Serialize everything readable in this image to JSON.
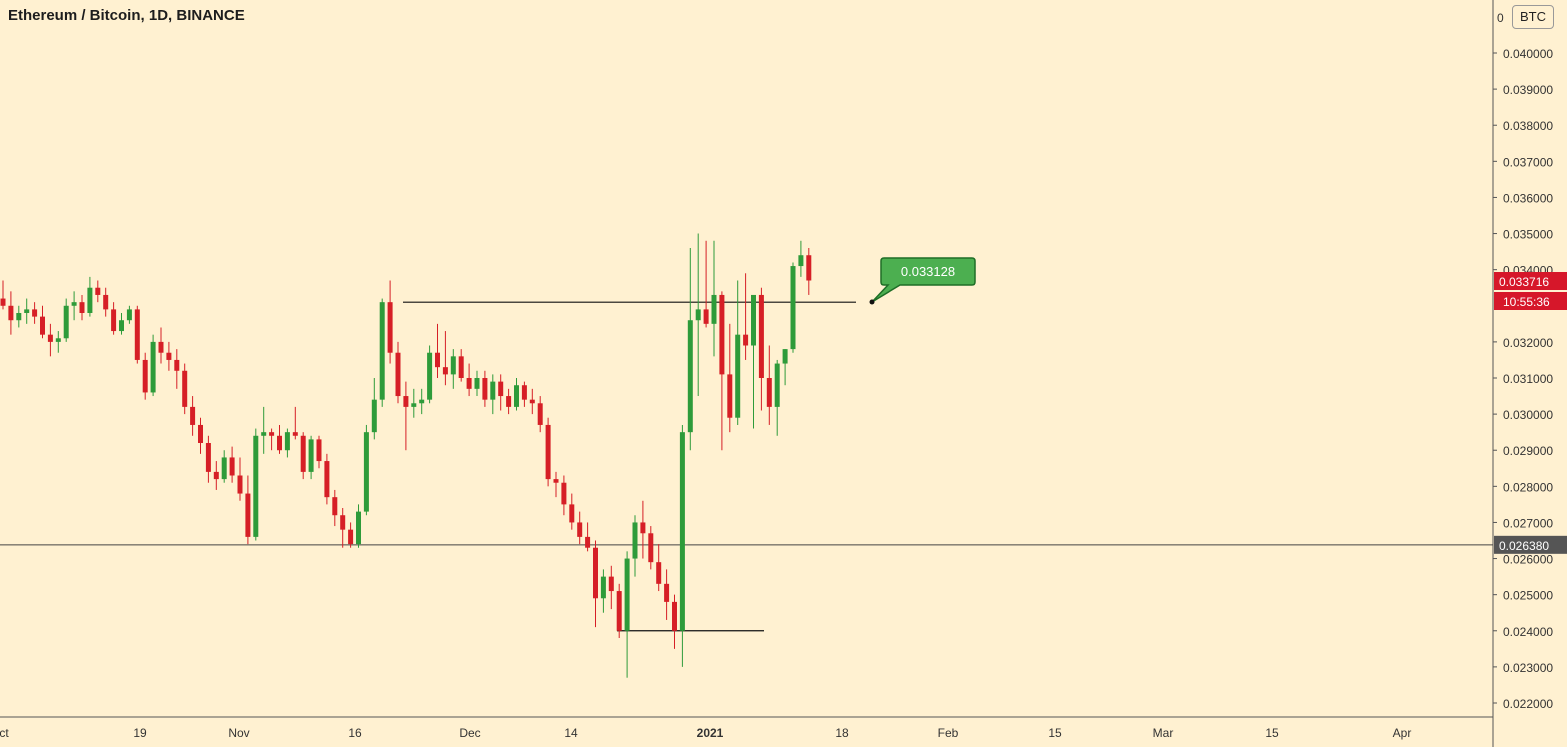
{
  "header": {
    "title": "Ethereum / Bitcoin, 1D, BINANCE",
    "currency_badge": "BTC"
  },
  "colors": {
    "background": "#fff1d1",
    "up": "#2e9b3a",
    "down": "#d61f26",
    "axis_text": "#333333",
    "price_tag": "#d6172a",
    "level_tag": "#555555",
    "callout": "#4caf50"
  },
  "chart_data": {
    "type": "candlestick",
    "y_axis_labels": [
      "0.040000",
      "0.039000",
      "0.038000",
      "0.037000",
      "0.036000",
      "0.035000",
      "0.034000",
      "0.032000",
      "0.031000",
      "0.030000",
      "0.029000",
      "0.028000",
      "0.027000",
      "0.026000",
      "0.025000",
      "0.024000",
      "0.023000",
      "0.022000"
    ],
    "ylim": [
      0.0215,
      0.0415
    ],
    "x_axis_labels": [
      "ct",
      "19",
      "Nov",
      "16",
      "Dec",
      "14",
      "2021",
      "18",
      "Feb",
      "15",
      "Mar",
      "15",
      "Apr"
    ],
    "current_price": "0.033716",
    "countdown": "10:55:36",
    "horizontal_level": "0.026380",
    "callout_value": "0.033128",
    "resistance_level": 0.0331,
    "support_level": 0.024,
    "candles": [
      [
        0.0332,
        0.0337,
        0.0329,
        0.033
      ],
      [
        0.033,
        0.0334,
        0.0322,
        0.0326
      ],
      [
        0.0326,
        0.033,
        0.0324,
        0.0328
      ],
      [
        0.0328,
        0.0332,
        0.0325,
        0.0329
      ],
      [
        0.0329,
        0.0331,
        0.0325,
        0.0327
      ],
      [
        0.0327,
        0.033,
        0.0321,
        0.0322
      ],
      [
        0.0322,
        0.0325,
        0.0316,
        0.032
      ],
      [
        0.032,
        0.0323,
        0.0317,
        0.0321
      ],
      [
        0.0321,
        0.0332,
        0.032,
        0.033
      ],
      [
        0.033,
        0.0334,
        0.0326,
        0.0331
      ],
      [
        0.0331,
        0.0333,
        0.0326,
        0.0328
      ],
      [
        0.0328,
        0.0338,
        0.0327,
        0.0335
      ],
      [
        0.0335,
        0.0337,
        0.0331,
        0.0333
      ],
      [
        0.0333,
        0.0335,
        0.0327,
        0.0329
      ],
      [
        0.0329,
        0.0331,
        0.0322,
        0.0323
      ],
      [
        0.0323,
        0.0328,
        0.0322,
        0.0326
      ],
      [
        0.0326,
        0.033,
        0.0325,
        0.0329
      ],
      [
        0.0329,
        0.033,
        0.0314,
        0.0315
      ],
      [
        0.0315,
        0.0317,
        0.0304,
        0.0306
      ],
      [
        0.0306,
        0.0322,
        0.0305,
        0.032
      ],
      [
        0.032,
        0.0324,
        0.0314,
        0.0317
      ],
      [
        0.0317,
        0.032,
        0.0312,
        0.0315
      ],
      [
        0.0315,
        0.0318,
        0.0307,
        0.0312
      ],
      [
        0.0312,
        0.0314,
        0.03,
        0.0302
      ],
      [
        0.0302,
        0.0305,
        0.0294,
        0.0297
      ],
      [
        0.0297,
        0.0299,
        0.0289,
        0.0292
      ],
      [
        0.0292,
        0.0294,
        0.0281,
        0.0284
      ],
      [
        0.0284,
        0.0287,
        0.0279,
        0.0282
      ],
      [
        0.0282,
        0.029,
        0.0281,
        0.0288
      ],
      [
        0.0288,
        0.0291,
        0.0281,
        0.0283
      ],
      [
        0.0283,
        0.0288,
        0.0276,
        0.0278
      ],
      [
        0.0278,
        0.0283,
        0.0264,
        0.0266
      ],
      [
        0.0266,
        0.0296,
        0.0265,
        0.0294
      ],
      [
        0.0294,
        0.0302,
        0.0289,
        0.0295
      ],
      [
        0.0295,
        0.0296,
        0.029,
        0.0294
      ],
      [
        0.0294,
        0.0297,
        0.0289,
        0.029
      ],
      [
        0.029,
        0.0296,
        0.0288,
        0.0295
      ],
      [
        0.0295,
        0.0302,
        0.0293,
        0.0294
      ],
      [
        0.0294,
        0.0295,
        0.0282,
        0.0284
      ],
      [
        0.0284,
        0.0294,
        0.0282,
        0.0293
      ],
      [
        0.0293,
        0.0294,
        0.0285,
        0.0287
      ],
      [
        0.0287,
        0.0289,
        0.0275,
        0.0277
      ],
      [
        0.0277,
        0.0279,
        0.0269,
        0.0272
      ],
      [
        0.0272,
        0.0274,
        0.0263,
        0.0268
      ],
      [
        0.0268,
        0.027,
        0.0263,
        0.0264
      ],
      [
        0.0264,
        0.0275,
        0.0263,
        0.0273
      ],
      [
        0.0273,
        0.0297,
        0.0272,
        0.0295
      ],
      [
        0.0295,
        0.031,
        0.0293,
        0.0304
      ],
      [
        0.0304,
        0.0332,
        0.0302,
        0.0331
      ],
      [
        0.0331,
        0.0337,
        0.0314,
        0.0317
      ],
      [
        0.0317,
        0.032,
        0.0303,
        0.0305
      ],
      [
        0.0305,
        0.0309,
        0.029,
        0.0302
      ],
      [
        0.0302,
        0.0307,
        0.0299,
        0.0303
      ],
      [
        0.0303,
        0.0307,
        0.03,
        0.0304
      ],
      [
        0.0304,
        0.0319,
        0.0303,
        0.0317
      ],
      [
        0.0317,
        0.0325,
        0.031,
        0.0313
      ],
      [
        0.0313,
        0.0323,
        0.0308,
        0.0311
      ],
      [
        0.0311,
        0.0318,
        0.0307,
        0.0316
      ],
      [
        0.0316,
        0.0318,
        0.0309,
        0.031
      ],
      [
        0.031,
        0.0314,
        0.0305,
        0.0307
      ],
      [
        0.0307,
        0.0312,
        0.0305,
        0.031
      ],
      [
        0.031,
        0.0312,
        0.0302,
        0.0304
      ],
      [
        0.0304,
        0.0311,
        0.03,
        0.0309
      ],
      [
        0.0309,
        0.0311,
        0.0301,
        0.0305
      ],
      [
        0.0305,
        0.0307,
        0.03,
        0.0302
      ],
      [
        0.0302,
        0.031,
        0.0301,
        0.0308
      ],
      [
        0.0308,
        0.0309,
        0.0302,
        0.0304
      ],
      [
        0.0304,
        0.0307,
        0.03,
        0.0303
      ],
      [
        0.0303,
        0.0305,
        0.0295,
        0.0297
      ],
      [
        0.0297,
        0.0299,
        0.028,
        0.0282
      ],
      [
        0.0282,
        0.0284,
        0.0277,
        0.0281
      ],
      [
        0.0281,
        0.0283,
        0.0272,
        0.0275
      ],
      [
        0.0275,
        0.0278,
        0.0268,
        0.027
      ],
      [
        0.027,
        0.0273,
        0.0264,
        0.0266
      ],
      [
        0.0266,
        0.027,
        0.0262,
        0.0263
      ],
      [
        0.0263,
        0.0265,
        0.0241,
        0.0249
      ],
      [
        0.0249,
        0.0257,
        0.0245,
        0.0255
      ],
      [
        0.0255,
        0.0258,
        0.0246,
        0.0251
      ],
      [
        0.0251,
        0.0253,
        0.0238,
        0.024
      ],
      [
        0.024,
        0.0262,
        0.0227,
        0.026
      ],
      [
        0.026,
        0.0272,
        0.0255,
        0.027
      ],
      [
        0.027,
        0.0276,
        0.026,
        0.0267
      ],
      [
        0.0267,
        0.0269,
        0.0257,
        0.0259
      ],
      [
        0.0259,
        0.0264,
        0.0251,
        0.0253
      ],
      [
        0.0253,
        0.0257,
        0.0243,
        0.0248
      ],
      [
        0.0248,
        0.025,
        0.0235,
        0.024
      ],
      [
        0.024,
        0.0297,
        0.023,
        0.0295
      ],
      [
        0.0295,
        0.0346,
        0.029,
        0.0326
      ],
      [
        0.0326,
        0.035,
        0.0305,
        0.0329
      ],
      [
        0.0329,
        0.0348,
        0.0324,
        0.0325
      ],
      [
        0.0325,
        0.0348,
        0.0316,
        0.0333
      ],
      [
        0.0333,
        0.0334,
        0.029,
        0.0311
      ],
      [
        0.0311,
        0.0325,
        0.0295,
        0.0299
      ],
      [
        0.0299,
        0.0337,
        0.0297,
        0.0322
      ],
      [
        0.0322,
        0.0339,
        0.0315,
        0.0319
      ],
      [
        0.0319,
        0.0332,
        0.0296,
        0.0333
      ],
      [
        0.0333,
        0.0335,
        0.0301,
        0.031
      ],
      [
        0.031,
        0.0319,
        0.0297,
        0.0302
      ],
      [
        0.0302,
        0.0315,
        0.0294,
        0.0314
      ],
      [
        0.0314,
        0.0318,
        0.0308,
        0.0318
      ],
      [
        0.0318,
        0.0342,
        0.0317,
        0.0341
      ],
      [
        0.0341,
        0.0348,
        0.0338,
        0.0344
      ],
      [
        0.0344,
        0.0346,
        0.0333,
        0.0337
      ]
    ]
  }
}
